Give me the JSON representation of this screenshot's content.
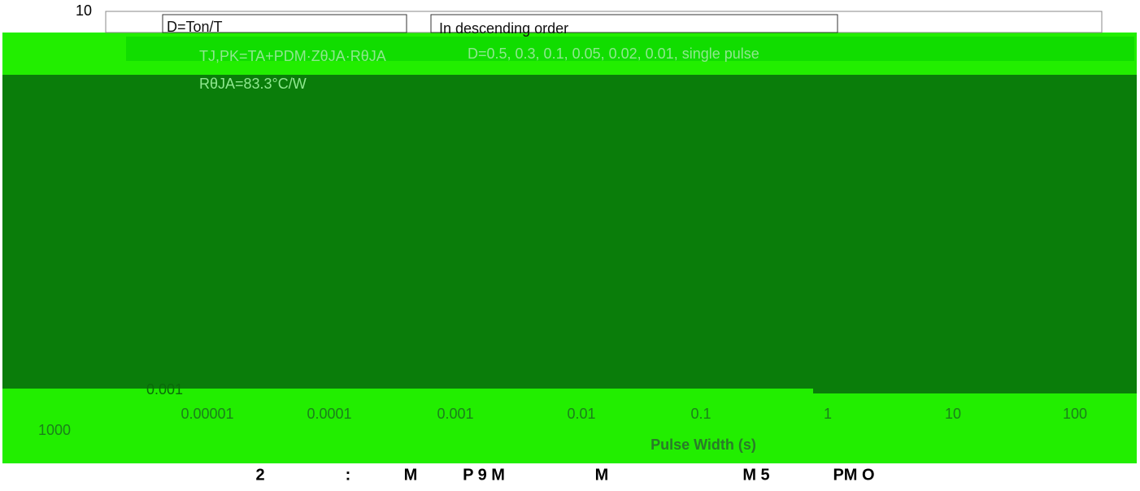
{
  "axis_labels": {
    "y_top": "10",
    "y_bottom": "0.001",
    "y_left_low": "1000",
    "x_title": "Pulse Width (s)",
    "x_ticks": [
      "0.00001",
      "0.0001",
      "0.001",
      "0.01",
      "0.1",
      "1",
      "10",
      "100"
    ]
  },
  "legend": {
    "duty": "D=Ton/T",
    "order": "In descending order",
    "formula": "TJ,PK=TA+PDM·ZθJA·RθJA",
    "duty_values": "D=0.5, 0.3, 0.1, 0.05, 0.02, 0.01, single pulse",
    "resistance": "RθJA=83.3°C/W"
  },
  "caption": [
    "2",
    ":",
    "M",
    "P 9 M",
    "M",
    "M 5",
    "PM O"
  ]
}
